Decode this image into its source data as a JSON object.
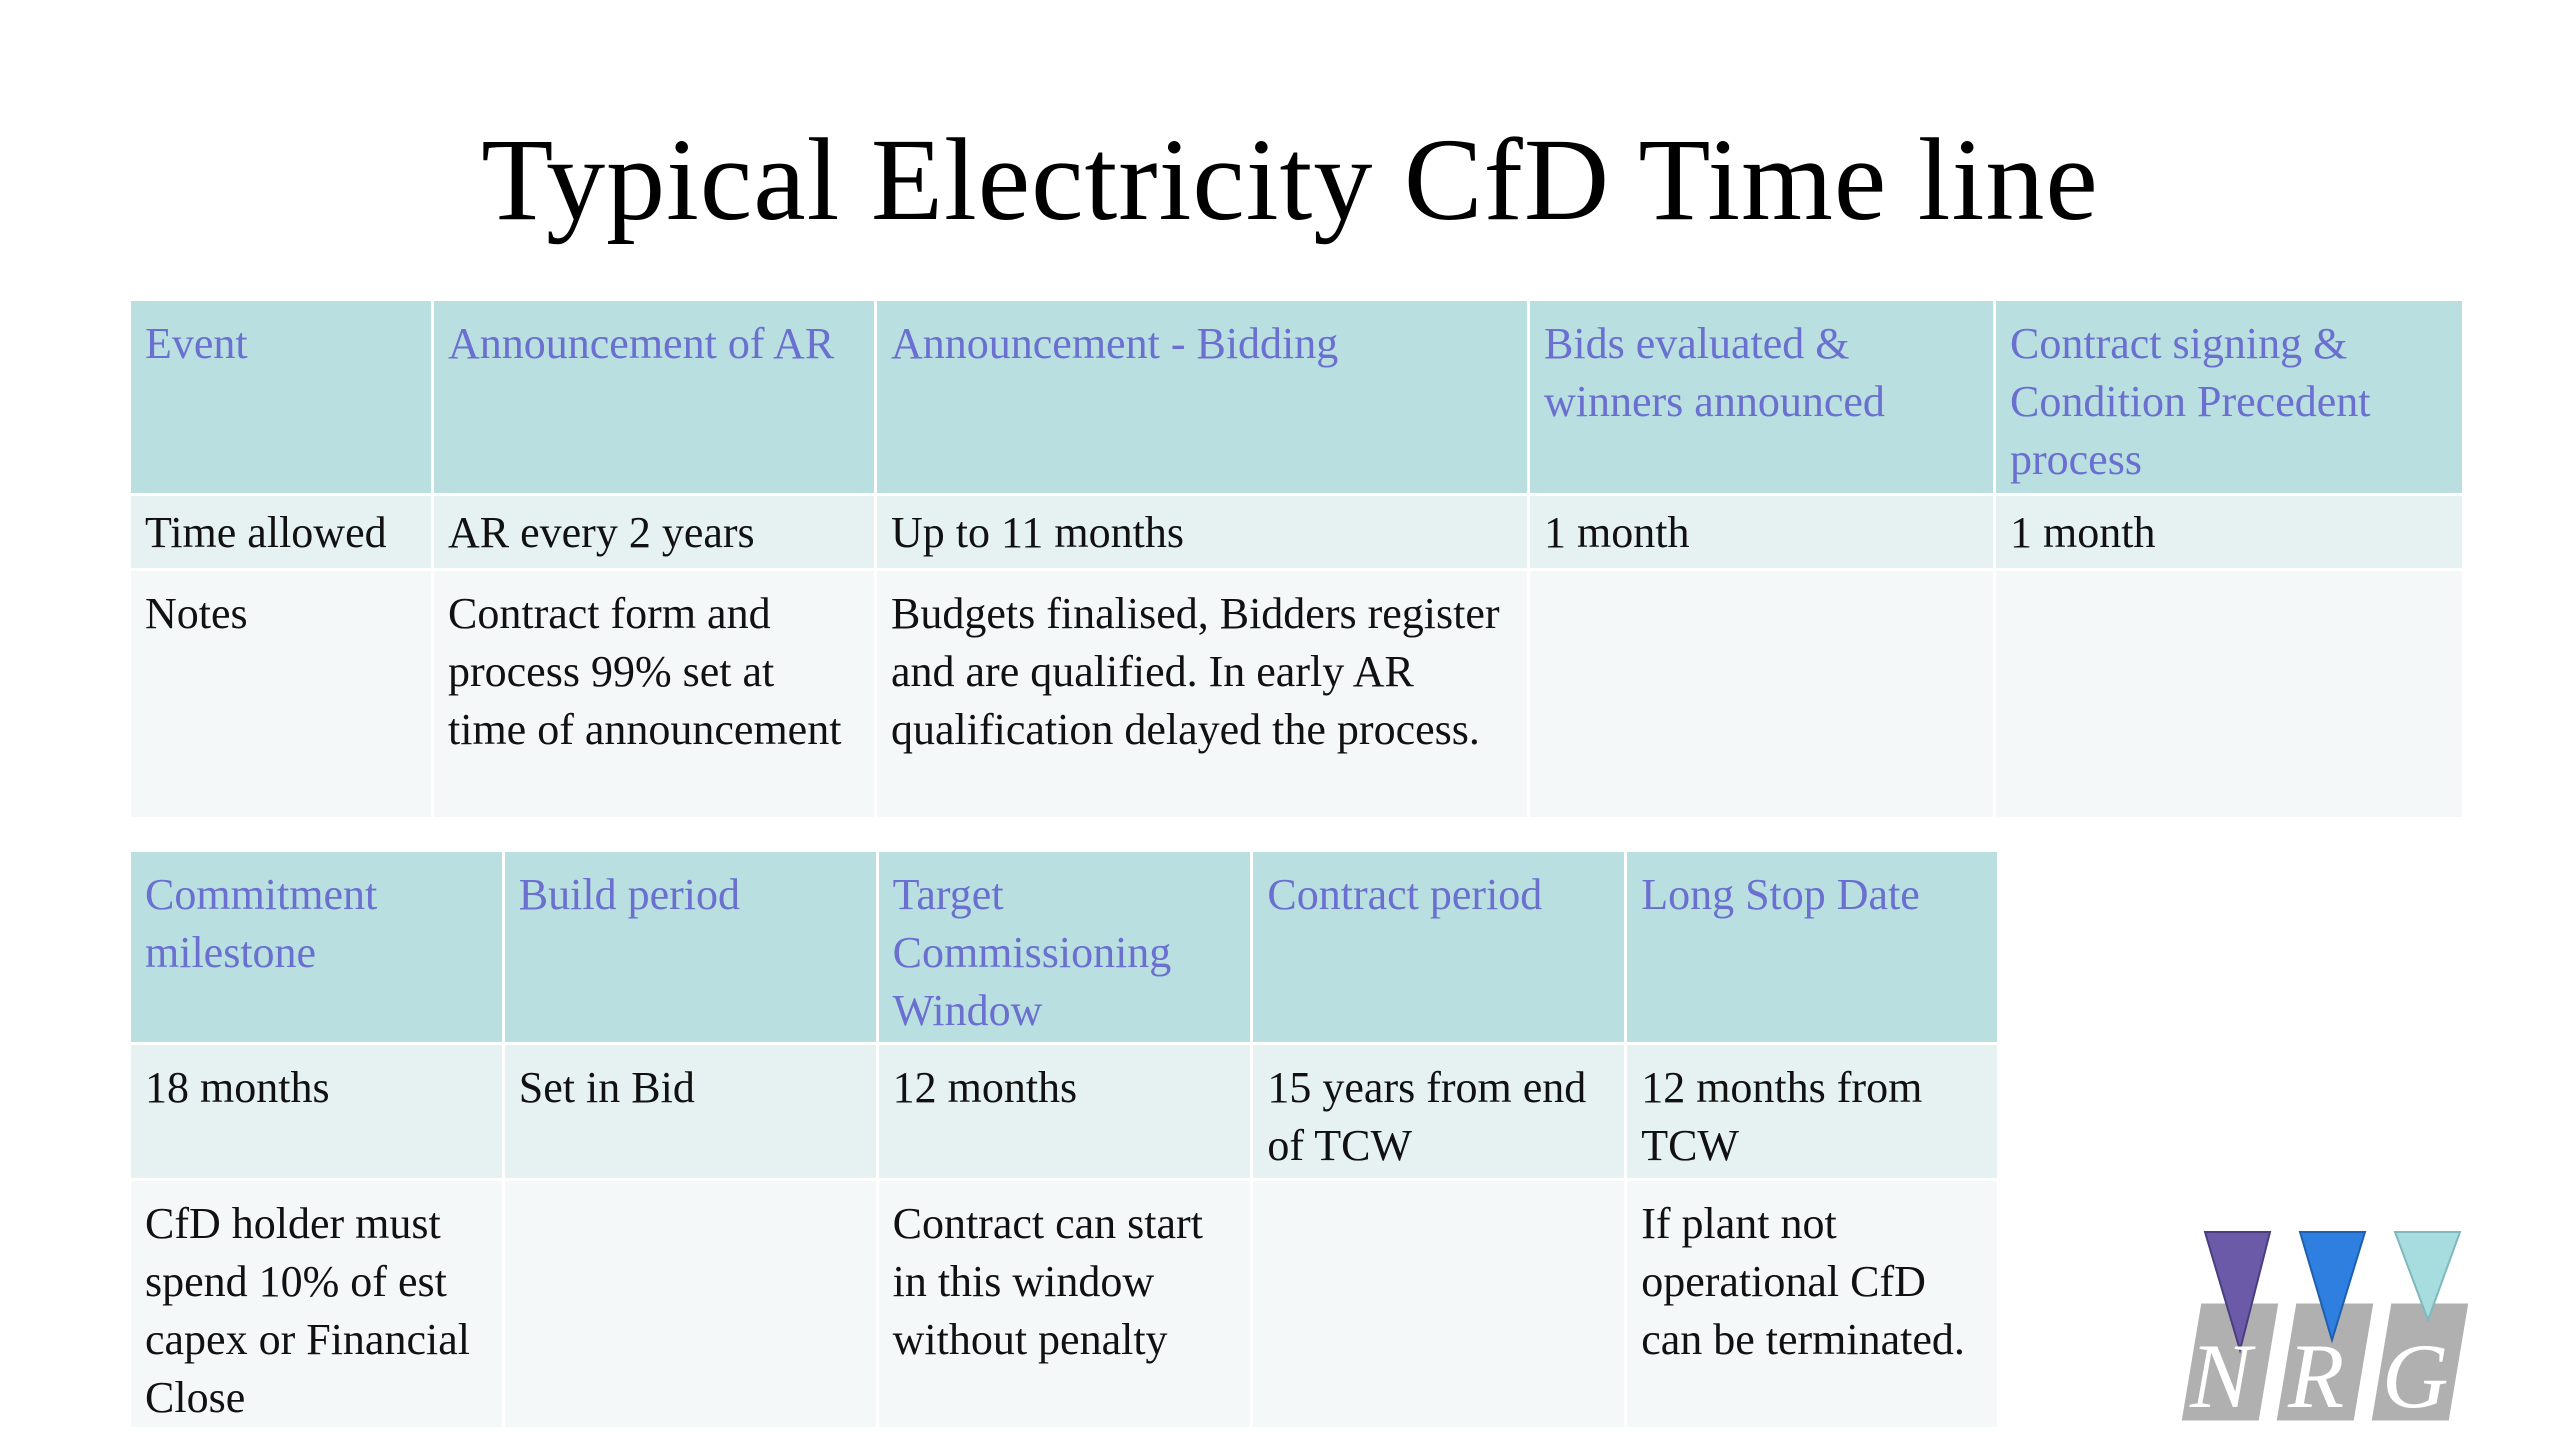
{
  "title": "Typical Electricity CfD Time line",
  "table_top": {
    "headers": [
      "Event",
      "Announcement of AR",
      "Announcement - Bidding",
      "Bids evaluated & winners announced",
      "Contract signing & Condition Precedent process"
    ],
    "row_time": [
      "Time allowed",
      "AR every 2 years",
      "Up to 11 months",
      "1 month",
      "1 month"
    ],
    "row_notes": [
      "Notes",
      "Contract form and process 99% set at time of announcement",
      "Budgets finalised, Bidders register and are qualified.  In early AR qualification delayed the process.",
      "",
      ""
    ]
  },
  "table_bottom": {
    "headers": [
      "Commitment milestone",
      "Build period",
      "Target Commissioning Window",
      "Contract period",
      "Long Stop Date"
    ],
    "row_time": [
      "18 months",
      "Set in Bid",
      "12 months",
      "15 years from end of TCW",
      "12 months from TCW"
    ],
    "row_notes": [
      "CfD holder must spend 10% of est capex or Financial Close",
      "",
      "Contract can start in this window without penalty",
      "",
      "If plant not operational CfD can be terminated."
    ]
  },
  "logo": {
    "text": "NRG",
    "colors": [
      "#6a5aa8",
      "#2f7fe0",
      "#a8dde0"
    ],
    "tile_color": "#b0b0b0"
  },
  "colors": {
    "header_bg": "#b9dfe1",
    "header_text": "#6a6fd0",
    "row_a_bg": "#e6f1f2",
    "row_b_bg": "#f4f8f9"
  }
}
